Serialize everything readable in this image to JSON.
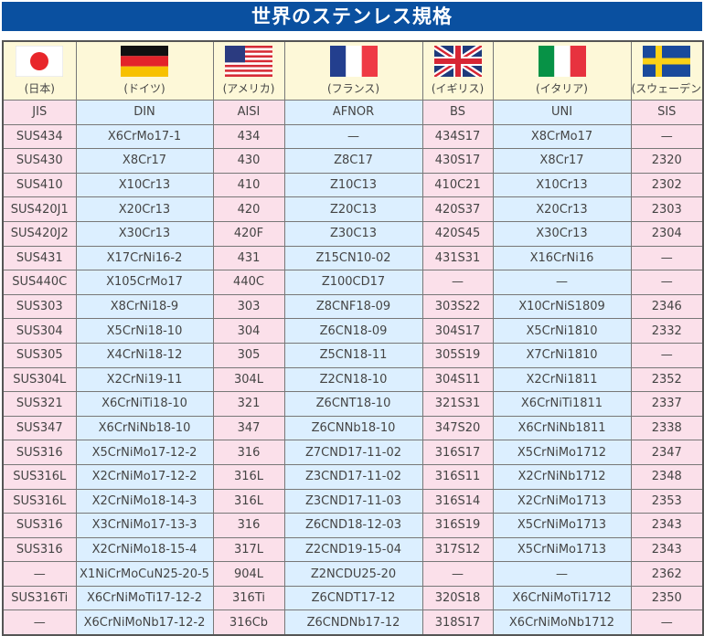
{
  "title": "世界のステンレス規格",
  "countries": [
    {
      "flag": "japan-flag",
      "label": "(日本)",
      "standard": "JIS"
    },
    {
      "flag": "germany-flag",
      "label": "(ドイツ)",
      "standard": "DIN"
    },
    {
      "flag": "usa-flag",
      "label": "(アメリカ)",
      "standard": "AISI"
    },
    {
      "flag": "france-flag",
      "label": "(フランス)",
      "standard": "AFNOR"
    },
    {
      "flag": "uk-flag",
      "label": "(イギリス)",
      "standard": "BS"
    },
    {
      "flag": "italy-flag",
      "label": "(イタリア)",
      "standard": "UNI"
    },
    {
      "flag": "sweden-flag",
      "label": "(スウェーデン)",
      "standard": "SIS"
    }
  ],
  "rows": [
    [
      "SUS434",
      "X6CrMo17-1",
      "434",
      "—",
      "434S17",
      "X8CrMo17",
      "—"
    ],
    [
      "SUS430",
      "X8Cr17",
      "430",
      "Z8C17",
      "430S17",
      "X8Cr17",
      "2320"
    ],
    [
      "SUS410",
      "X10Cr13",
      "410",
      "Z10C13",
      "410C21",
      "X10Cr13",
      "2302"
    ],
    [
      "SUS420J1",
      "X20Cr13",
      "420",
      "Z20C13",
      "420S37",
      "X20Cr13",
      "2303"
    ],
    [
      "SUS420J2",
      "X30Cr13",
      "420F",
      "Z30C13",
      "420S45",
      "X30Cr13",
      "2304"
    ],
    [
      "SUS431",
      "X17CrNi16-2",
      "431",
      "Z15CN10-02",
      "431S31",
      "X16CrNi16",
      "—"
    ],
    [
      "SUS440C",
      "X105CrMo17",
      "440C",
      "Z100CD17",
      "—",
      "—",
      "—"
    ],
    [
      "SUS303",
      "X8CrNi18-9",
      "303",
      "Z8CNF18-09",
      "303S22",
      "X10CrNiS1809",
      "2346"
    ],
    [
      "SUS304",
      "X5CrNi18-10",
      "304",
      "Z6CN18-09",
      "304S17",
      "X5CrNi1810",
      "2332"
    ],
    [
      "SUS305",
      "X4CrNi18-12",
      "305",
      "Z5CN18-11",
      "305S19",
      "X7CrNi1810",
      "—"
    ],
    [
      "SUS304L",
      "X2CrNi19-11",
      "304L",
      "Z2CN18-10",
      "304S11",
      "X2CrNi1811",
      "2352"
    ],
    [
      "SUS321",
      "X6CrNiTi18-10",
      "321",
      "Z6CNT18-10",
      "321S31",
      "X6CrNiTi1811",
      "2337"
    ],
    [
      "SUS347",
      "X6CrNiNb18-10",
      "347",
      "Z6CNNb18-10",
      "347S20",
      "X6CrNiNb1811",
      "2338"
    ],
    [
      "SUS316",
      "X5CrNiMo17-12-2",
      "316",
      "Z7CND17-11-02",
      "316S17",
      "X5CrNiMo1712",
      "2347"
    ],
    [
      "SUS316L",
      "X2CrNiMo17-12-2",
      "316L",
      "Z3CND17-11-02",
      "316S11",
      "X2CrNiNb1712",
      "2348"
    ],
    [
      "SUS316L",
      "X2CrNiMo18-14-3",
      "316L",
      "Z3CND17-11-03",
      "316S14",
      "X2CrNiMo1713",
      "2353"
    ],
    [
      "SUS316",
      "X3CrNiMo17-13-3",
      "316",
      "Z6CND18-12-03",
      "316S19",
      "X5CrNiMo1713",
      "2343"
    ],
    [
      "SUS316",
      "X2CrNiMo18-15-4",
      "317L",
      "Z2CND19-15-04",
      "317S12",
      "X5CrNiMo1713",
      "2343"
    ],
    [
      "—",
      "X1NiCrMoCuN25-20-5",
      "904L",
      "Z2NCDU25-20",
      "—",
      "—",
      "2362"
    ],
    [
      "SUS316Ti",
      "X6CrNiMoTi17-12-2",
      "316Ti",
      "Z6CNDT17-12",
      "320S18",
      "X6CrNiMoTi1712",
      "2350"
    ],
    [
      "—",
      "X6CrNiMoNb17-12-2",
      "316Cb",
      "Z6CNDNb17-12",
      "318S17",
      "X6CrNiMoNb1712",
      "—"
    ]
  ]
}
